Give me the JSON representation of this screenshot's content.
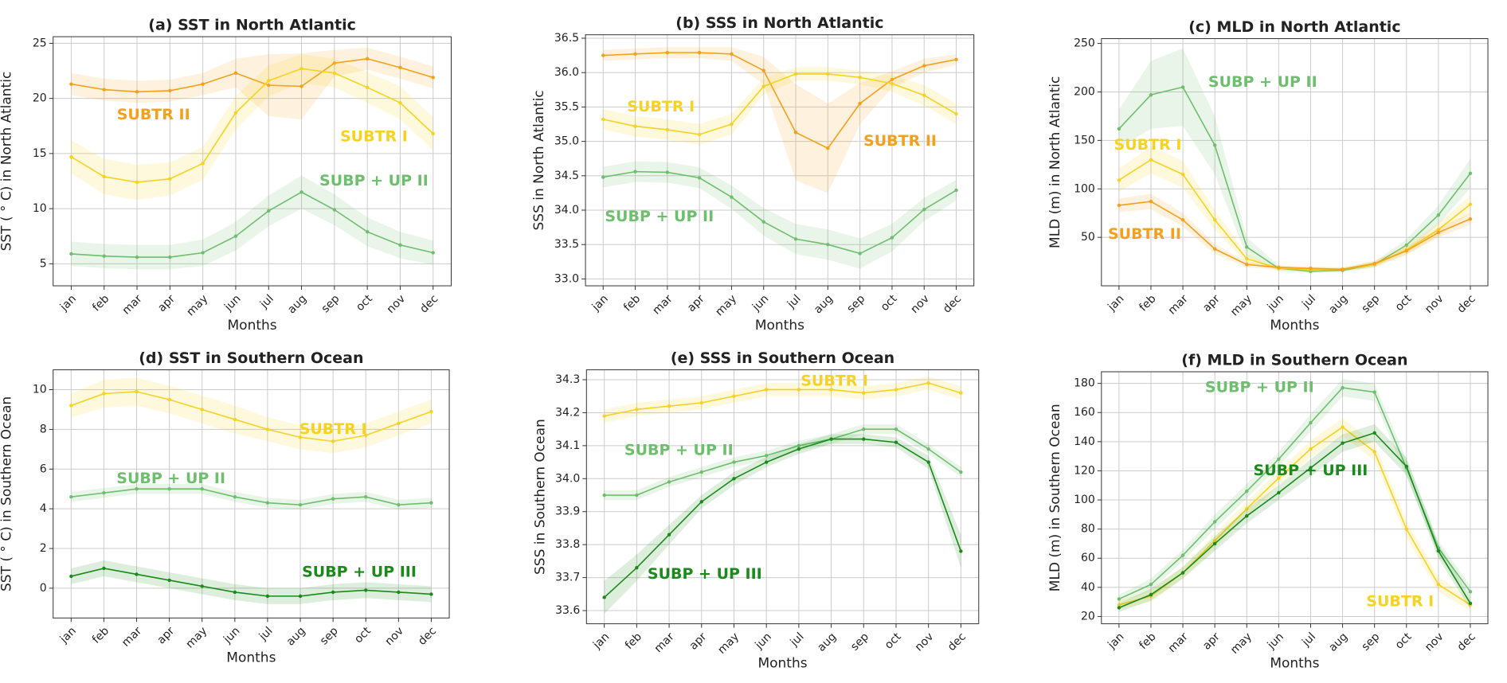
{
  "chart_data": [
    {
      "type": "line",
      "title": "(a) SST in North Atlantic",
      "xlabel": "Months",
      "ylabel": "SST ( ° C) in North Atlantic",
      "categories": [
        "jan",
        "feb",
        "mar",
        "apr",
        "may",
        "jun",
        "jul",
        "aug",
        "sep",
        "oct",
        "nov",
        "dec"
      ],
      "ylim": [
        3,
        25.6
      ],
      "yticks": [
        5,
        10,
        15,
        20,
        25
      ],
      "grid": true,
      "series": [
        {
          "name": "SUBTR II",
          "color": "#f5a01a",
          "values": [
            21.3,
            20.8,
            20.6,
            20.7,
            21.3,
            22.3,
            21.2,
            21.1,
            23.2,
            23.6,
            22.8,
            21.9
          ],
          "errors": [
            1,
            1,
            1,
            1,
            1,
            1.3,
            2.8,
            3,
            1.2,
            1,
            1,
            1
          ]
        },
        {
          "name": "SUBTR I",
          "color": "#f7d21e",
          "values": [
            14.7,
            12.9,
            12.4,
            12.7,
            14.1,
            18.7,
            21.6,
            22.7,
            22.3,
            21,
            19.6,
            16.8
          ],
          "errors": [
            1.5,
            1.6,
            1.6,
            1.5,
            1.5,
            1.5,
            1.4,
            1.3,
            1.3,
            1.4,
            1.5,
            1.5
          ]
        },
        {
          "name": "SUBP + UP II",
          "color": "#6dbf6d",
          "values": [
            5.9,
            5.7,
            5.6,
            5.6,
            6,
            7.5,
            9.8,
            11.5,
            9.9,
            7.9,
            6.7,
            6
          ],
          "errors": [
            1.1,
            1.1,
            1.1,
            1.1,
            1.2,
            1.3,
            1.4,
            1.5,
            1.4,
            1.3,
            1.2,
            1.1
          ]
        }
      ]
    },
    {
      "type": "line",
      "title": "(b) SSS in North Atlantic",
      "xlabel": "Months",
      "ylabel": "SSS in North Atlantic",
      "categories": [
        "jan",
        "feb",
        "mar",
        "apr",
        "may",
        "jun",
        "jul",
        "aug",
        "sep",
        "oct",
        "nov",
        "dec"
      ],
      "ylim": [
        32.9,
        36.55
      ],
      "yticks": [
        {
          "value": 33,
          "label": "33.0"
        },
        33.5,
        {
          "value": 34,
          "label": "34.0"
        },
        34.5,
        {
          "value": 35,
          "label": "35.0"
        },
        35.5,
        {
          "value": 36,
          "label": "36.0"
        },
        36.5
      ],
      "grid": true,
      "series": [
        {
          "name": "SUBTR II",
          "color": "#f5a01a",
          "values": [
            36.25,
            36.27,
            36.29,
            36.29,
            36.27,
            36.03,
            35.13,
            34.9,
            35.55,
            35.9,
            36.1,
            36.19
          ],
          "errors": [
            0.08,
            0.08,
            0.08,
            0.08,
            0.1,
            0.2,
            0.7,
            0.65,
            0.3,
            0.12,
            0.1,
            0.08
          ]
        },
        {
          "name": "SUBTR I",
          "color": "#f7d21e",
          "values": [
            35.32,
            35.22,
            35.17,
            35.1,
            35.25,
            35.8,
            35.98,
            35.98,
            35.93,
            35.84,
            35.67,
            35.4
          ],
          "errors": [
            0.15,
            0.15,
            0.15,
            0.15,
            0.15,
            0.12,
            0.1,
            0.1,
            0.1,
            0.12,
            0.15,
            0.15
          ]
        },
        {
          "name": "SUBP + UP II",
          "color": "#6dbf6d",
          "values": [
            34.48,
            34.56,
            34.55,
            34.47,
            34.19,
            33.83,
            33.58,
            33.5,
            33.37,
            33.6,
            34.01,
            34.29
          ],
          "errors": [
            0.15,
            0.15,
            0.15,
            0.15,
            0.17,
            0.2,
            0.22,
            0.22,
            0.22,
            0.2,
            0.17,
            0.15
          ]
        }
      ]
    },
    {
      "type": "line",
      "title": "(c) MLD in North Atlantic",
      "xlabel": "Months",
      "ylabel": "MLD (m) in North Atlantic",
      "categories": [
        "jan",
        "feb",
        "mar",
        "apr",
        "may",
        "jun",
        "jul",
        "aug",
        "sep",
        "oct",
        "nov",
        "dec"
      ],
      "ylim": [
        0,
        255
      ],
      "yticks": [
        50,
        100,
        150,
        200,
        250
      ],
      "grid": true,
      "series": [
        {
          "name": "SUBP + UP II",
          "color": "#6dbf6d",
          "values": [
            162,
            197,
            205,
            145,
            40,
            18,
            15,
            16,
            22,
            42,
            73,
            116
          ],
          "errors": [
            20,
            35,
            40,
            30,
            10,
            3,
            2,
            2,
            3,
            6,
            10,
            15
          ]
        },
        {
          "name": "SUBTR I",
          "color": "#f7d21e",
          "values": [
            109,
            130,
            115,
            68,
            28,
            18,
            17,
            17,
            22,
            37,
            58,
            84
          ],
          "errors": [
            12,
            14,
            14,
            10,
            5,
            2,
            2,
            2,
            3,
            5,
            7,
            9
          ]
        },
        {
          "name": "SUBTR II",
          "color": "#f5a01a",
          "values": [
            83,
            87,
            68,
            38,
            22,
            19,
            18,
            17,
            23,
            36,
            55,
            69
          ],
          "errors": [
            7,
            8,
            7,
            5,
            3,
            2,
            2,
            2,
            3,
            4,
            5,
            6
          ]
        }
      ]
    },
    {
      "type": "line",
      "title": "(d) SST in Southern Ocean",
      "xlabel": "Months",
      "ylabel": "SST ( ° C) in Southern Ocean",
      "categories": [
        "jan",
        "feb",
        "mar",
        "apr",
        "may",
        "jun",
        "jul",
        "aug",
        "sep",
        "oct",
        "nov",
        "dec"
      ],
      "ylim": [
        -1.5,
        11
      ],
      "yticks": [
        0,
        2,
        4,
        6,
        8,
        10
      ],
      "grid": true,
      "series": [
        {
          "name": "SUBTR I",
          "color": "#f7d21e",
          "values": [
            9.2,
            9.8,
            9.9,
            9.5,
            9,
            8.5,
            8,
            7.6,
            7.4,
            7.7,
            8.3,
            8.9
          ],
          "errors": [
            0.6,
            0.7,
            0.7,
            0.7,
            0.7,
            0.7,
            0.6,
            0.6,
            0.6,
            0.6,
            0.6,
            0.6
          ]
        },
        {
          "name": "SUBP + UP II",
          "color": "#6dbf6d",
          "values": [
            4.6,
            4.8,
            5,
            5,
            5,
            4.6,
            4.3,
            4.2,
            4.5,
            4.6,
            4.2,
            4.3
          ],
          "errors": [
            0.25,
            0.25,
            0.25,
            0.25,
            0.25,
            0.25,
            0.25,
            0.25,
            0.25,
            0.25,
            0.25,
            0.25
          ]
        },
        {
          "name": "SUBP + UP III",
          "color": "#1a8a1a",
          "values": [
            0.6,
            1,
            0.7,
            0.4,
            0.1,
            -0.2,
            -0.4,
            -0.4,
            -0.2,
            -0.1,
            -0.2,
            -0.3
          ],
          "errors": [
            0.4,
            0.4,
            0.4,
            0.4,
            0.4,
            0.4,
            0.4,
            0.4,
            0.4,
            0.4,
            0.4,
            0.4
          ]
        }
      ]
    },
    {
      "type": "line",
      "title": "(e) SSS in Southern Ocean",
      "xlabel": "Months",
      "ylabel": "SSS in Southern Ocean",
      "categories": [
        "jan",
        "feb",
        "mar",
        "apr",
        "may",
        "jun",
        "jul",
        "aug",
        "sep",
        "oct",
        "nov",
        "dec"
      ],
      "ylim": [
        33.56,
        34.33
      ],
      "yticks": [
        33.6,
        33.7,
        33.8,
        33.9,
        {
          "value": 34,
          "label": "34.0"
        },
        34.1,
        34.2,
        34.3
      ],
      "grid": true,
      "series": [
        {
          "name": "SUBTR I",
          "color": "#f7d21e",
          "values": [
            34.19,
            34.21,
            34.22,
            34.23,
            34.25,
            34.27,
            34.27,
            34.27,
            34.26,
            34.27,
            34.29,
            34.26
          ],
          "errors": [
            0.02,
            0.02,
            0.02,
            0.02,
            0.02,
            0.02,
            0.02,
            0.02,
            0.02,
            0.02,
            0.02,
            0.02
          ]
        },
        {
          "name": "SUBP + UP II",
          "color": "#6dbf6d",
          "values": [
            33.95,
            33.95,
            33.99,
            34.02,
            34.05,
            34.07,
            34.1,
            34.12,
            34.15,
            34.15,
            34.09,
            34.02
          ],
          "errors": [
            0.015,
            0.015,
            0.015,
            0.015,
            0.015,
            0.015,
            0.015,
            0.015,
            0.015,
            0.015,
            0.015,
            0.015
          ]
        },
        {
          "name": "SUBP + UP III",
          "color": "#1a8a1a",
          "values": [
            33.64,
            33.73,
            33.83,
            33.93,
            34,
            34.05,
            34.09,
            34.12,
            34.12,
            34.11,
            34.05,
            33.78
          ],
          "errors": [
            0.05,
            0.04,
            0.03,
            0.02,
            0.02,
            0.015,
            0.015,
            0.015,
            0.015,
            0.015,
            0.02,
            0.05
          ]
        }
      ]
    },
    {
      "type": "line",
      "title": "(f) MLD in Southern Ocean",
      "xlabel": "Months",
      "ylabel": "MLD (m) in Southern Ocean",
      "categories": [
        "jan",
        "feb",
        "mar",
        "apr",
        "may",
        "jun",
        "jul",
        "aug",
        "sep",
        "oct",
        "nov",
        "dec"
      ],
      "ylim": [
        15,
        188
      ],
      "yticks": [
        20,
        40,
        60,
        80,
        100,
        120,
        140,
        160,
        180
      ],
      "grid": true,
      "series": [
        {
          "name": "SUBP + UP II",
          "color": "#6dbf6d",
          "values": [
            32,
            42,
            62,
            85,
            106,
            128,
            153,
            177,
            174,
            122,
            67,
            37
          ],
          "errors": [
            3,
            4,
            4,
            5,
            5,
            5,
            6,
            6,
            6,
            6,
            5,
            4
          ]
        },
        {
          "name": "SUBTR I",
          "color": "#f7d21e",
          "values": [
            28,
            34,
            50,
            72,
            94,
            115,
            135,
            150,
            133,
            80,
            42,
            28
          ],
          "errors": [
            3,
            4,
            4,
            5,
            5,
            5,
            6,
            6,
            6,
            6,
            5,
            4
          ]
        },
        {
          "name": "SUBP + UP III",
          "color": "#1a8a1a",
          "values": [
            26,
            35,
            50,
            70,
            89,
            105,
            122,
            139,
            146,
            123,
            65,
            29
          ],
          "errors": [
            3,
            4,
            4,
            5,
            5,
            5,
            6,
            6,
            6,
            6,
            5,
            4
          ]
        }
      ]
    }
  ]
}
